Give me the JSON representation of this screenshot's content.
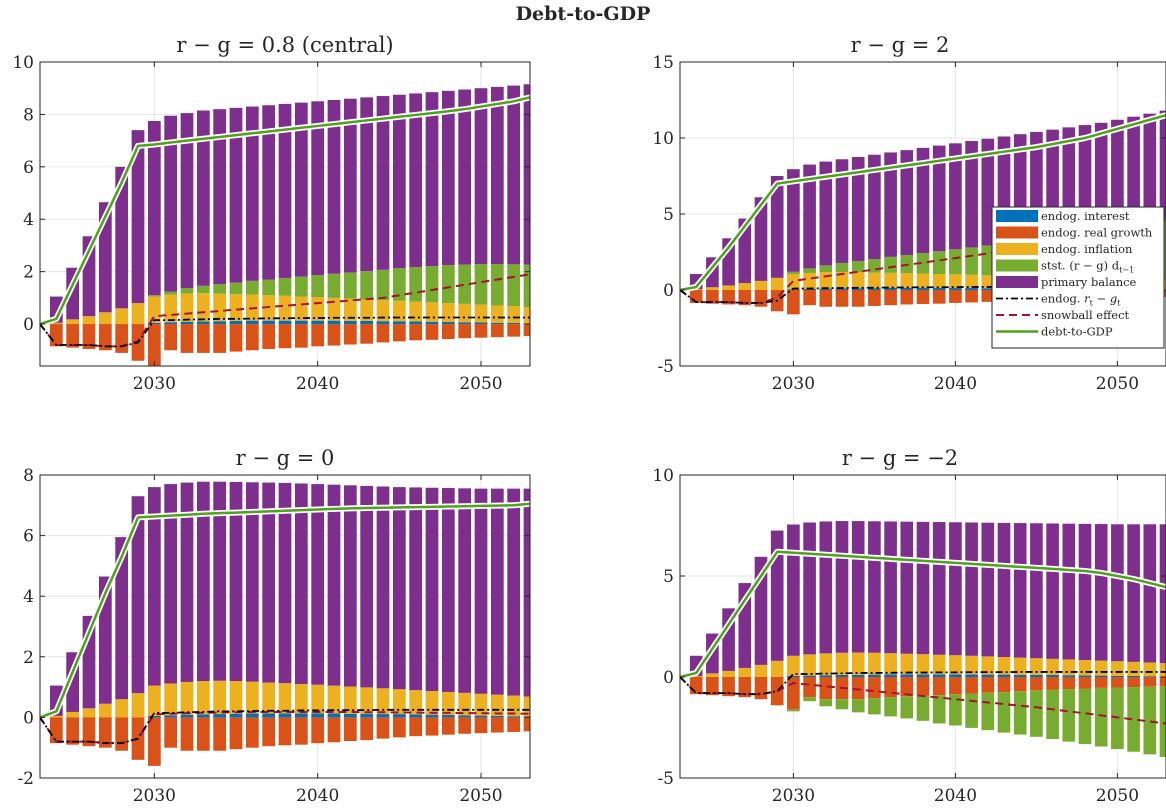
{
  "figure_title": "Debt-to-GDP",
  "colors": {
    "interest": "#0072BD",
    "real_growth": "#D95319",
    "inflation": "#EDB120",
    "stst": "#77AC30",
    "primary": "#7E2F8E",
    "rg_line": "#000000",
    "snowball": "#A2142F",
    "debt_line": "#4DA31C"
  },
  "legend": {
    "interest": "endog. interest",
    "real_growth": "endog. real growth",
    "inflation": "endog. inflation",
    "stst": "stst. (r − g) d",
    "stst_sub": "t−1",
    "primary": "primary balance",
    "rg_prefix": "endog. ",
    "rg_r": "r",
    "rg_rsub": "t",
    "rg_minus": " − ",
    "rg_g": "g",
    "rg_gsub": "t",
    "snowball": "snowball effect",
    "debt": "debt-to-GDP"
  },
  "chart_data": [
    {
      "type": "bar",
      "title": "r − g = 0.8 (central)",
      "years": [
        2023,
        2053
      ],
      "ylim": [
        -1.6,
        10
      ],
      "yticks": [
        0,
        2,
        4,
        6,
        8,
        10
      ],
      "xticks": [
        2030,
        2040,
        2050
      ],
      "legend": false,
      "series": {
        "primary_top": [
          1.05,
          2.15,
          3.35,
          4.65,
          6.0,
          7.4,
          7.75,
          7.95,
          8.05,
          8.15,
          8.2,
          8.25,
          8.3,
          8.35,
          8.4,
          8.45,
          8.5,
          8.55,
          8.6,
          8.65,
          8.7,
          8.75,
          8.8,
          8.85,
          8.9,
          8.95,
          9.0,
          9.05,
          9.1,
          9.15
        ],
        "stst": [
          0.0,
          0.0,
          0.0,
          0.0,
          0.0,
          0.0,
          0.05,
          0.12,
          0.2,
          0.28,
          0.36,
          0.44,
          0.52,
          0.6,
          0.68,
          0.76,
          0.84,
          0.92,
          1.0,
          1.08,
          1.16,
          1.24,
          1.31,
          1.38,
          1.45,
          1.5,
          1.55,
          1.58,
          1.6,
          1.62
        ],
        "inflation": [
          0.05,
          0.18,
          0.3,
          0.45,
          0.6,
          0.8,
          1.0,
          1.05,
          1.08,
          1.08,
          1.05,
          1.02,
          1.0,
          0.97,
          0.95,
          0.92,
          0.9,
          0.87,
          0.85,
          0.82,
          0.8,
          0.78,
          0.76,
          0.74,
          0.72,
          0.7,
          0.68,
          0.66,
          0.64,
          0.62
        ],
        "interest": [
          0.0,
          0.0,
          0.0,
          0.0,
          0.0,
          0.0,
          0.05,
          0.07,
          0.09,
          0.1,
          0.11,
          0.12,
          0.13,
          0.13,
          0.13,
          0.13,
          0.13,
          0.13,
          0.12,
          0.12,
          0.11,
          0.11,
          0.1,
          0.09,
          0.08,
          0.07,
          0.06,
          0.05,
          0.04,
          0.03
        ],
        "real_growth": [
          -0.85,
          -0.9,
          -0.95,
          -1.0,
          -1.1,
          -1.4,
          -1.6,
          -1.0,
          -1.1,
          -1.1,
          -1.1,
          -1.05,
          -1.0,
          -0.95,
          -0.92,
          -0.9,
          -0.85,
          -0.82,
          -0.78,
          -0.75,
          -0.7,
          -0.66,
          -0.62,
          -0.6,
          -0.57,
          -0.54,
          -0.52,
          -0.5,
          -0.48,
          -0.46
        ],
        "rg": [
          0.0,
          -0.8,
          -0.8,
          -0.8,
          -0.85,
          -0.85,
          -0.7,
          0.15,
          0.15,
          0.17,
          0.18,
          0.2,
          0.2,
          0.21,
          0.22,
          0.22,
          0.23,
          0.23,
          0.24,
          0.24,
          0.24,
          0.25,
          0.25,
          0.25,
          0.25,
          0.25,
          0.25,
          0.25,
          0.25,
          0.25,
          0.25
        ],
        "snowball": [
          0.0,
          -0.8,
          -0.8,
          -0.8,
          -0.85,
          -0.85,
          -0.65,
          0.3,
          0.35,
          0.4,
          0.45,
          0.5,
          0.55,
          0.6,
          0.65,
          0.7,
          0.75,
          0.8,
          0.85,
          0.9,
          0.95,
          1.0,
          1.1,
          1.2,
          1.3,
          1.4,
          1.5,
          1.6,
          1.7,
          1.8,
          1.9
        ],
        "debt": [
          0.0,
          0.2,
          1.5,
          2.8,
          4.1,
          5.4,
          6.8,
          6.85,
          6.93,
          7.0,
          7.07,
          7.14,
          7.21,
          7.28,
          7.35,
          7.42,
          7.49,
          7.56,
          7.63,
          7.7,
          7.77,
          7.84,
          7.91,
          7.98,
          8.05,
          8.12,
          8.2,
          8.3,
          8.4,
          8.5,
          8.65
        ]
      }
    },
    {
      "type": "bar",
      "title": "r − g = 2",
      "years": [
        2023,
        2053
      ],
      "ylim": [
        -5,
        15
      ],
      "yticks": [
        -5,
        0,
        5,
        10,
        15
      ],
      "xticks": [
        2030,
        2040,
        2050
      ],
      "legend": true,
      "series": {
        "primary_top": [
          1.05,
          2.15,
          3.4,
          4.7,
          6.1,
          7.5,
          7.95,
          8.25,
          8.45,
          8.6,
          8.75,
          8.9,
          9.05,
          9.2,
          9.35,
          9.5,
          9.65,
          9.8,
          9.95,
          10.1,
          10.25,
          10.4,
          10.55,
          10.7,
          10.85,
          11.0,
          11.2,
          11.4,
          11.6,
          11.8
        ],
        "stst": [
          0.0,
          0.0,
          0.0,
          0.0,
          0.0,
          0.0,
          0.15,
          0.3,
          0.45,
          0.6,
          0.75,
          0.9,
          1.05,
          1.2,
          1.35,
          1.5,
          1.65,
          1.8,
          1.95,
          2.1,
          2.25,
          2.4,
          2.6,
          2.8,
          3.0,
          3.2,
          3.4,
          3.6,
          3.8,
          4.0
        ],
        "inflation": [
          0.05,
          0.18,
          0.3,
          0.45,
          0.6,
          0.8,
          1.0,
          1.05,
          1.08,
          1.08,
          1.05,
          1.02,
          1.0,
          0.97,
          0.95,
          0.92,
          0.9,
          0.87,
          0.85,
          0.82,
          0.8,
          0.78,
          0.76,
          0.74,
          0.72,
          0.7,
          0.68,
          0.66,
          0.64,
          0.62
        ],
        "interest": [
          0.0,
          0.0,
          0.0,
          0.0,
          0.0,
          0.0,
          0.05,
          0.07,
          0.09,
          0.1,
          0.11,
          0.12,
          0.13,
          0.13,
          0.13,
          0.13,
          0.13,
          0.13,
          0.12,
          0.12,
          0.11,
          0.11,
          0.1,
          0.09,
          0.08,
          0.07,
          0.06,
          0.05,
          0.04,
          0.03
        ],
        "real_growth": [
          -0.85,
          -0.9,
          -0.95,
          -1.0,
          -1.1,
          -1.4,
          -1.6,
          -1.0,
          -1.1,
          -1.1,
          -1.1,
          -1.05,
          -1.0,
          -0.95,
          -0.92,
          -0.9,
          -0.85,
          -0.82,
          -0.78,
          -0.75,
          -0.7,
          -0.66,
          -0.62,
          -0.6,
          -0.57,
          -0.54,
          -0.52,
          -0.5,
          -0.48,
          -0.46
        ],
        "rg": [
          0.0,
          -0.8,
          -0.8,
          -0.8,
          -0.85,
          -0.85,
          -0.7,
          0.1,
          0.1,
          0.12,
          0.13,
          0.15,
          0.15,
          0.16,
          0.17,
          0.18,
          0.18,
          0.19,
          0.2,
          0.2,
          0.2,
          0.21,
          0.21,
          0.22,
          0.22,
          0.22,
          0.22,
          0.22,
          0.22,
          0.22,
          0.22
        ],
        "snowball": [
          0.0,
          -0.8,
          -0.8,
          -0.8,
          -0.85,
          -0.85,
          -0.5,
          0.6,
          0.75,
          0.9,
          1.05,
          1.2,
          1.35,
          1.5,
          1.65,
          1.8,
          1.95,
          2.1,
          2.25,
          2.4,
          2.6,
          2.8,
          3.0,
          3.2,
          3.4,
          3.6,
          3.8,
          4.0,
          4.2,
          4.4,
          4.6
        ],
        "debt": [
          0.0,
          0.2,
          1.5,
          2.8,
          4.2,
          5.6,
          7.0,
          7.15,
          7.3,
          7.45,
          7.6,
          7.75,
          7.9,
          8.05,
          8.2,
          8.35,
          8.5,
          8.65,
          8.8,
          8.95,
          9.1,
          9.25,
          9.4,
          9.6,
          9.8,
          10.0,
          10.3,
          10.6,
          10.9,
          11.2,
          11.5
        ]
      }
    },
    {
      "type": "bar",
      "title": "r − g = 0",
      "years": [
        2023,
        2053
      ],
      "ylim": [
        -2,
        8
      ],
      "yticks": [
        -2,
        0,
        2,
        4,
        6,
        8
      ],
      "xticks": [
        2030,
        2040,
        2050
      ],
      "legend": false,
      "series": {
        "primary_top": [
          1.05,
          2.15,
          3.35,
          4.65,
          5.95,
          7.3,
          7.6,
          7.7,
          7.75,
          7.78,
          7.78,
          7.77,
          7.76,
          7.75,
          7.74,
          7.72,
          7.7,
          7.68,
          7.66,
          7.64,
          7.62,
          7.6,
          7.59,
          7.58,
          7.57,
          7.56,
          7.55,
          7.55,
          7.55,
          7.55
        ],
        "stst": [
          0.0,
          0.0,
          0.0,
          0.0,
          0.0,
          0.0,
          0.0,
          0.0,
          0.0,
          0.0,
          0.0,
          0.0,
          0.0,
          0.0,
          0.0,
          0.0,
          0.0,
          0.0,
          0.0,
          0.0,
          0.0,
          0.0,
          0.0,
          0.0,
          0.0,
          0.0,
          0.0,
          0.0,
          0.0,
          0.0
        ],
        "inflation": [
          0.05,
          0.18,
          0.3,
          0.45,
          0.6,
          0.8,
          1.0,
          1.05,
          1.08,
          1.1,
          1.1,
          1.08,
          1.05,
          1.02,
          1.0,
          0.97,
          0.95,
          0.92,
          0.9,
          0.87,
          0.85,
          0.82,
          0.8,
          0.78,
          0.76,
          0.74,
          0.72,
          0.7,
          0.68,
          0.66
        ],
        "interest": [
          0.0,
          0.0,
          0.0,
          0.0,
          0.0,
          0.0,
          0.05,
          0.07,
          0.09,
          0.1,
          0.11,
          0.12,
          0.13,
          0.13,
          0.13,
          0.13,
          0.13,
          0.13,
          0.12,
          0.12,
          0.11,
          0.11,
          0.1,
          0.09,
          0.08,
          0.07,
          0.06,
          0.05,
          0.04,
          0.03
        ],
        "real_growth": [
          -0.85,
          -0.9,
          -0.95,
          -1.0,
          -1.1,
          -1.4,
          -1.6,
          -1.0,
          -1.1,
          -1.1,
          -1.1,
          -1.05,
          -1.0,
          -0.95,
          -0.92,
          -0.9,
          -0.85,
          -0.82,
          -0.78,
          -0.75,
          -0.7,
          -0.66,
          -0.62,
          -0.6,
          -0.57,
          -0.54,
          -0.52,
          -0.5,
          -0.48,
          -0.46
        ],
        "rg": [
          0.0,
          -0.8,
          -0.8,
          -0.8,
          -0.85,
          -0.85,
          -0.7,
          0.15,
          0.15,
          0.17,
          0.18,
          0.2,
          0.2,
          0.21,
          0.22,
          0.22,
          0.23,
          0.23,
          0.24,
          0.24,
          0.24,
          0.25,
          0.25,
          0.25,
          0.25,
          0.25,
          0.25,
          0.25,
          0.25,
          0.25,
          0.25
        ],
        "snowball": [
          0.0,
          -0.8,
          -0.8,
          -0.8,
          -0.85,
          -0.85,
          -0.7,
          0.1,
          0.12,
          0.14,
          0.15,
          0.16,
          0.17,
          0.18,
          0.18,
          0.18,
          0.18,
          0.18,
          0.18,
          0.18,
          0.17,
          0.17,
          0.16,
          0.16,
          0.15,
          0.15,
          0.14,
          0.14,
          0.13,
          0.13,
          0.12
        ],
        "debt": [
          0.0,
          0.2,
          1.5,
          2.8,
          4.1,
          5.3,
          6.6,
          6.63,
          6.66,
          6.69,
          6.72,
          6.74,
          6.76,
          6.78,
          6.8,
          6.82,
          6.84,
          6.86,
          6.88,
          6.9,
          6.91,
          6.92,
          6.93,
          6.94,
          6.95,
          6.96,
          6.97,
          6.98,
          6.99,
          7.0,
          7.05
        ]
      }
    },
    {
      "type": "bar",
      "title": "r − g = −2",
      "years": [
        2023,
        2053
      ],
      "ylim": [
        -5,
        10
      ],
      "yticks": [
        -5,
        0,
        5,
        10
      ],
      "xticks": [
        2030,
        2040,
        2050
      ],
      "legend": false,
      "series": {
        "primary_top": [
          1.05,
          2.15,
          3.4,
          4.65,
          5.95,
          7.25,
          7.55,
          7.65,
          7.7,
          7.72,
          7.72,
          7.71,
          7.7,
          7.69,
          7.68,
          7.67,
          7.66,
          7.65,
          7.64,
          7.63,
          7.62,
          7.61,
          7.6,
          7.59,
          7.58,
          7.57,
          7.56,
          7.56,
          7.56,
          7.56
        ],
        "stst": [
          0.0,
          0.0,
          0.0,
          0.0,
          0.0,
          0.0,
          -0.1,
          -0.2,
          -0.35,
          -0.5,
          -0.65,
          -0.8,
          -0.95,
          -1.1,
          -1.25,
          -1.4,
          -1.55,
          -1.7,
          -1.85,
          -2.0,
          -2.15,
          -2.3,
          -2.45,
          -2.6,
          -2.75,
          -2.9,
          -3.05,
          -3.2,
          -3.35,
          -3.5
        ],
        "inflation": [
          0.05,
          0.18,
          0.3,
          0.45,
          0.6,
          0.8,
          1.0,
          1.05,
          1.08,
          1.1,
          1.1,
          1.08,
          1.05,
          1.02,
          1.0,
          0.97,
          0.95,
          0.92,
          0.9,
          0.87,
          0.85,
          0.82,
          0.8,
          0.78,
          0.76,
          0.74,
          0.72,
          0.7,
          0.68,
          0.66
        ],
        "interest": [
          0.0,
          0.0,
          0.0,
          0.0,
          0.0,
          0.0,
          0.05,
          0.07,
          0.09,
          0.1,
          0.11,
          0.12,
          0.13,
          0.13,
          0.13,
          0.13,
          0.13,
          0.13,
          0.12,
          0.12,
          0.11,
          0.11,
          0.1,
          0.09,
          0.08,
          0.07,
          0.06,
          0.05,
          0.04,
          0.03
        ],
        "real_growth": [
          -0.85,
          -0.9,
          -0.95,
          -1.0,
          -1.1,
          -1.4,
          -1.6,
          -1.0,
          -1.1,
          -1.1,
          -1.1,
          -1.05,
          -1.0,
          -0.95,
          -0.92,
          -0.9,
          -0.85,
          -0.82,
          -0.78,
          -0.75,
          -0.7,
          -0.66,
          -0.62,
          -0.6,
          -0.57,
          -0.54,
          -0.52,
          -0.5,
          -0.48,
          -0.46
        ],
        "rg": [
          0.0,
          -0.8,
          -0.8,
          -0.8,
          -0.85,
          -0.85,
          -0.7,
          0.15,
          0.15,
          0.17,
          0.18,
          0.2,
          0.2,
          0.21,
          0.22,
          0.22,
          0.23,
          0.23,
          0.24,
          0.24,
          0.24,
          0.25,
          0.25,
          0.25,
          0.25,
          0.25,
          0.25,
          0.25,
          0.25,
          0.25,
          0.25
        ],
        "snowball": [
          0.0,
          -0.8,
          -0.8,
          -0.8,
          -0.85,
          -0.85,
          -0.7,
          -0.3,
          -0.38,
          -0.46,
          -0.54,
          -0.62,
          -0.7,
          -0.78,
          -0.86,
          -0.94,
          -1.02,
          -1.1,
          -1.18,
          -1.26,
          -1.34,
          -1.42,
          -1.5,
          -1.6,
          -1.7,
          -1.8,
          -1.9,
          -2.0,
          -2.1,
          -2.2,
          -2.3
        ],
        "debt": [
          0.0,
          0.2,
          1.4,
          2.6,
          3.8,
          5.0,
          6.2,
          6.15,
          6.1,
          6.05,
          6.0,
          5.95,
          5.9,
          5.85,
          5.8,
          5.75,
          5.7,
          5.65,
          5.6,
          5.55,
          5.5,
          5.45,
          5.4,
          5.35,
          5.3,
          5.25,
          5.15,
          5.0,
          4.85,
          4.65,
          4.45
        ]
      }
    }
  ]
}
